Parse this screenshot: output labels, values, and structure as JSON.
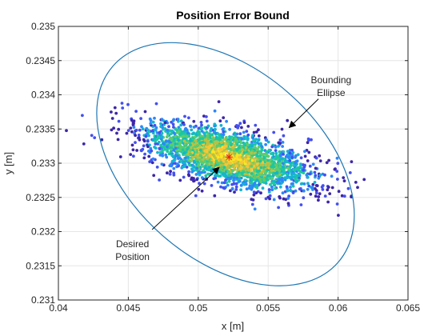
{
  "chart_data": {
    "type": "scatter",
    "title": "Position Error Bound",
    "xlabel": "x [m]",
    "ylabel": "y [m]",
    "xlim": [
      0.04,
      0.065
    ],
    "ylim": [
      0.231,
      0.235
    ],
    "grid": true,
    "x_ticks": [
      0.04,
      0.045,
      0.05,
      0.055,
      0.06,
      0.065
    ],
    "x_tick_labels": [
      "0.04",
      "0.045",
      "0.05",
      "0.055",
      "0.06",
      "0.065"
    ],
    "y_ticks": [
      0.231,
      0.2315,
      0.232,
      0.2325,
      0.233,
      0.2335,
      0.234,
      0.2345,
      0.235
    ],
    "y_tick_labels": [
      "0.231",
      "0.2315",
      "0.232",
      "0.2325",
      "0.233",
      "0.2335",
      "0.234",
      "0.2345",
      "0.235"
    ],
    "point_cloud": {
      "center": [
        0.0522,
        0.23309
      ],
      "approx_count": 2500,
      "covariance": [
        [
          9e-06,
          -4.5e-07
        ],
        [
          -4.5e-07,
          6.2e-08
        ]
      ],
      "palette": [
        "#3e26a8",
        "#4450ee",
        "#2e87f7",
        "#13b4d1",
        "#1cc8a0",
        "#5bcd6e",
        "#b8c143",
        "#f6c636",
        "#f9e622"
      ]
    },
    "desired_position": {
      "x": 0.0522,
      "y": 0.23309,
      "marker": "asterisk",
      "color": "#e0261e"
    },
    "ellipse": {
      "center": [
        0.0522,
        0.23309
      ],
      "points": [
        [
          0.0439,
          0.23442
        ],
        [
          0.0519,
          0.2317
        ],
        [
          0.06,
          0.23155
        ],
        [
          0.0524,
          0.23448
        ]
      ],
      "color": "#1f77b4"
    },
    "annotations": [
      {
        "id": "bounding",
        "lines": [
          "Bounding",
          "Ellipse"
        ],
        "text_at": [
          0.0595,
          0.23417
        ],
        "arrow_from": [
          0.0586,
          0.23394
        ],
        "arrow_to": [
          0.0565,
          0.23352
        ]
      },
      {
        "id": "desired",
        "lines": [
          "Desired",
          "Position"
        ],
        "text_at": [
          0.0453,
          0.23177
        ],
        "arrow_from": [
          0.0467,
          0.23203
        ],
        "arrow_to": [
          0.0515,
          0.23294
        ]
      }
    ]
  }
}
